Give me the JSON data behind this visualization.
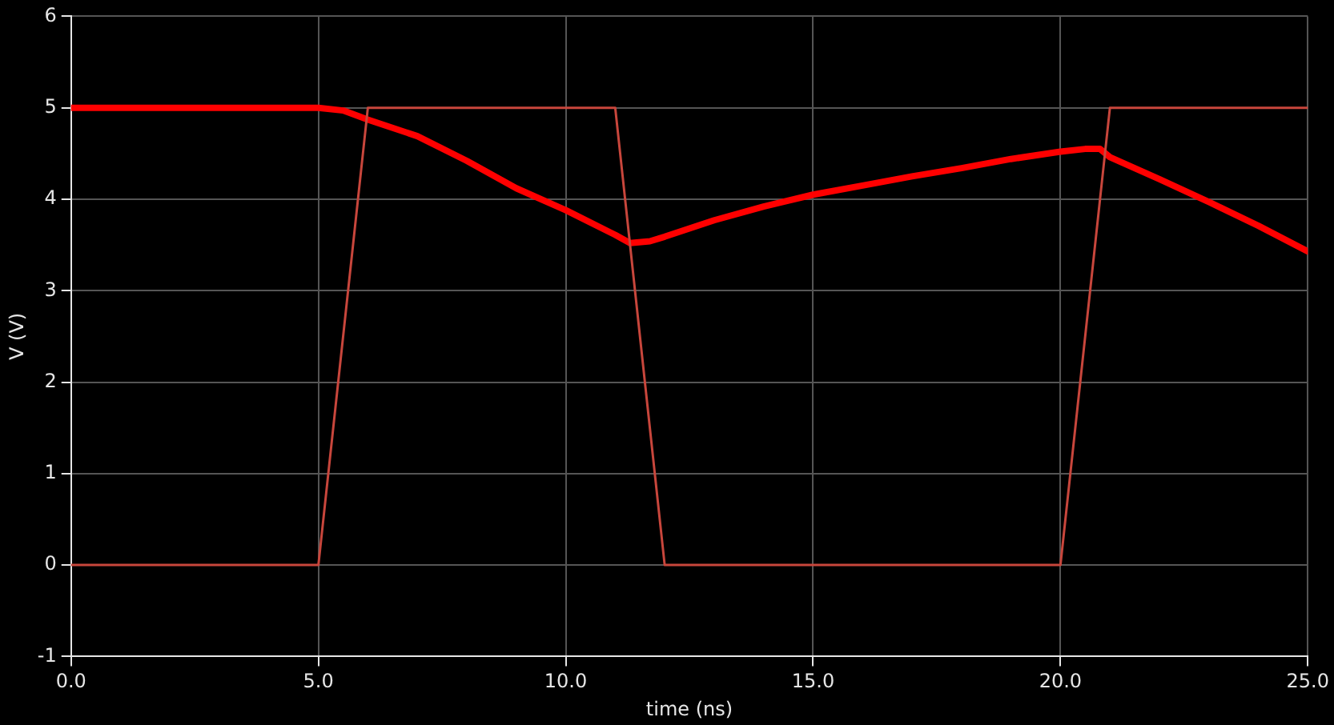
{
  "chart_data": {
    "type": "line",
    "xlabel": "time (ns)",
    "ylabel": "V (V)",
    "xlim": [
      0,
      25
    ],
    "xticks": [
      {
        "value": 0,
        "label": "0.0"
      },
      {
        "value": 5,
        "label": "5.0"
      },
      {
        "value": 10,
        "label": "10.0"
      },
      {
        "value": 15,
        "label": "15.0"
      },
      {
        "value": 20,
        "label": "20.0"
      },
      {
        "value": 25,
        "label": "25.0"
      }
    ],
    "ylim": [
      -1,
      6
    ],
    "yticks": [
      -1,
      0,
      1,
      2,
      3,
      4,
      5,
      6
    ],
    "grid": true,
    "legend": false,
    "marker": "none",
    "line_style": "solid",
    "series": [
      {
        "color": "#c8463c",
        "x": [
          0,
          5,
          6,
          11,
          12,
          20,
          21,
          25
        ],
        "values": [
          0,
          0,
          5,
          5,
          0,
          0,
          5,
          5
        ]
      },
      {
        "color": "#ff0000",
        "x": [
          0,
          5,
          5.5,
          6,
          7,
          8,
          9,
          10,
          11,
          11.3,
          11.7,
          12,
          13,
          14,
          15,
          16,
          17,
          18,
          19,
          20,
          20.5,
          20.8,
          21,
          22,
          23,
          24,
          25
        ],
        "values": [
          5,
          5,
          4.97,
          4.87,
          4.69,
          4.42,
          4.12,
          3.88,
          3.61,
          3.52,
          3.54,
          3.59,
          3.77,
          3.92,
          4.05,
          4.15,
          4.25,
          4.34,
          4.44,
          4.52,
          4.55,
          4.55,
          4.46,
          4.22,
          3.97,
          3.71,
          3.43
        ]
      }
    ]
  }
}
